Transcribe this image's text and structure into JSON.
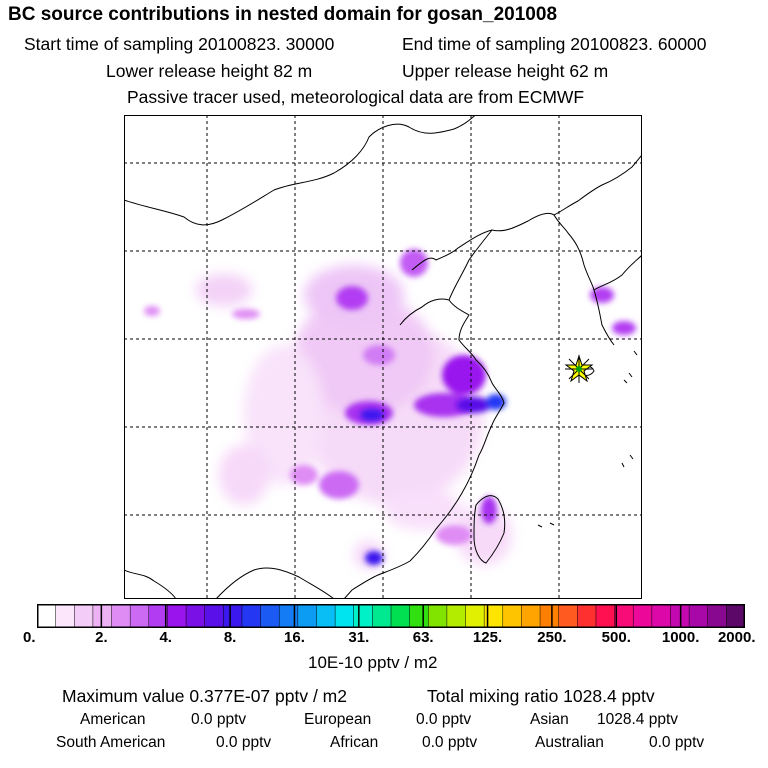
{
  "header": {
    "title": "BC  source contributions in nested domain for gosan_201008",
    "start_time": "Start time of sampling 20100823. 30000",
    "end_time": "End time of sampling 20100823. 60000",
    "lower_height": "Lower release height   82 m",
    "upper_height": "Upper release height   62 m",
    "tracer_note": "Passive tracer used, meteorological data are from ECMWF"
  },
  "map": {
    "receptor": "gosan",
    "marker_icon": "star-marker-icon",
    "colors": {
      "outline": "#000000",
      "gridline": "#000000",
      "marker_fill": "#ffff00",
      "marker_center": "#00a000"
    }
  },
  "colorbar": {
    "colors": [
      "#ffffff",
      "#fbe6fb",
      "#f4ccf8",
      "#ecb2f4",
      "#df8cf4",
      "#cc6af4",
      "#b23cf2",
      "#9a14ee",
      "#7a10e6",
      "#5a10e8",
      "#3a18ee",
      "#2438f4",
      "#1c5af4",
      "#147cf4",
      "#0c9cf4",
      "#08bef4",
      "#00e4f0",
      "#00f0c8",
      "#00e890",
      "#00e050",
      "#30e010",
      "#80e400",
      "#b4ec00",
      "#e0f000",
      "#ffe400",
      "#ffc400",
      "#ffa400",
      "#ff8000",
      "#ff5a20",
      "#ff3030",
      "#ff1050",
      "#f80c78",
      "#ec0898",
      "#dc08a8",
      "#c408b0",
      "#a808a8",
      "#880890",
      "#5c0868"
    ],
    "tick_labels": [
      "0.",
      "2.",
      "4.",
      "8.",
      "16.",
      "31.",
      "63.",
      "125.",
      "250.",
      "500.",
      "1000.",
      "2000."
    ],
    "units": "10E-10 pptv / m2"
  },
  "summary": {
    "maximum_value": "Maximum value  0.377E-07 pptv / m2",
    "total_mixing_ratio": "Total mixing ratio     1028.4 pptv",
    "regions_row1": [
      {
        "label": "American",
        "value": "0.0 pptv"
      },
      {
        "label": "European",
        "value": "0.0 pptv"
      },
      {
        "label": "Asian",
        "value": "1028.4 pptv"
      }
    ],
    "regions_row2": [
      {
        "label": "South American",
        "value": "0.0 pptv"
      },
      {
        "label": "African",
        "value": "0.0 pptv"
      },
      {
        "label": "Australian",
        "value": "0.0 pptv"
      }
    ]
  }
}
